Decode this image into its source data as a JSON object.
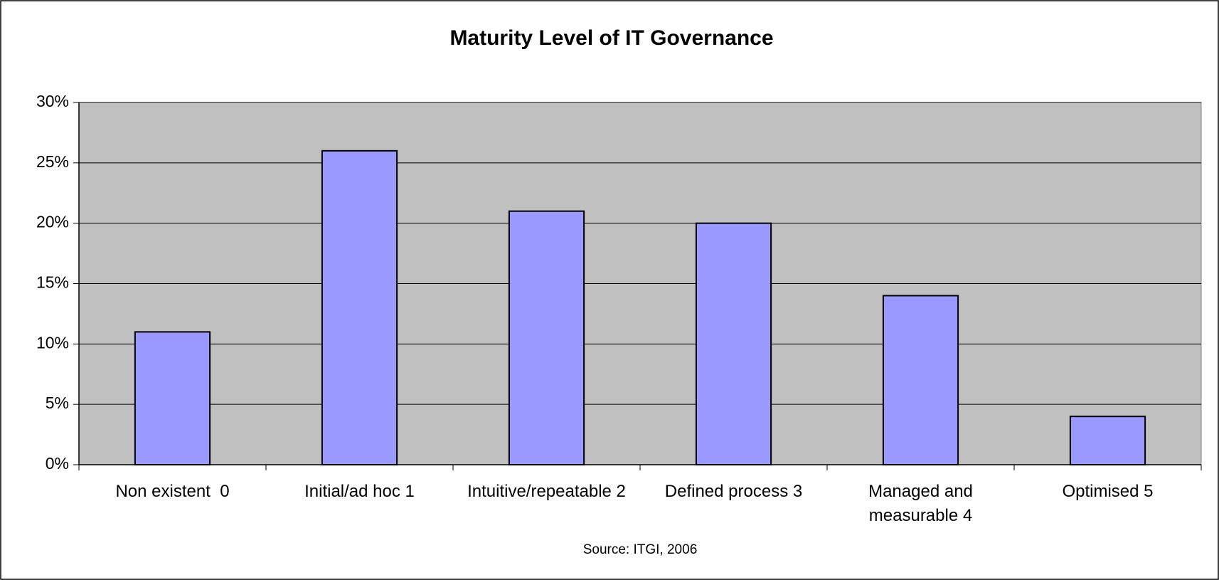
{
  "chart_data": {
    "type": "bar",
    "title": "Maturity Level of IT Governance",
    "source": "Source: ITGI, 2006",
    "categories": [
      "Non existent  0",
      "Initial/ad hoc 1",
      "Intuitive/repeatable 2",
      "Defined process 3",
      "Managed and measurable 4",
      "Optimised 5"
    ],
    "values": [
      11,
      26,
      21,
      20,
      14,
      4
    ],
    "color": "#9999ff",
    "plot_background": "#c0c0c0",
    "ylim": [
      0,
      30
    ],
    "yticks": [
      {
        "value": 0,
        "label": "0%"
      },
      {
        "value": 5,
        "label": "5%"
      },
      {
        "value": 10,
        "label": "10%"
      },
      {
        "value": 15,
        "label": "15%"
      },
      {
        "value": 20,
        "label": "20%"
      },
      {
        "value": 25,
        "label": "25%"
      },
      {
        "value": 30,
        "label": "30%"
      }
    ],
    "grid": true
  }
}
